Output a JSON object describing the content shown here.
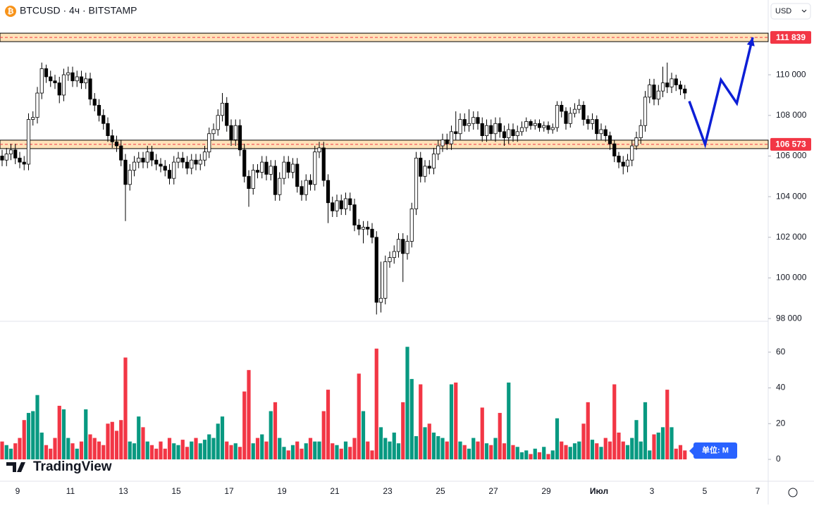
{
  "header": {
    "icon": "₿",
    "title": "BTCUSD · 4ч · BITSTAMP",
    "currency": "USD"
  },
  "watermark": "TradingView",
  "chart_data": [
    {
      "type": "candlestick",
      "up_color": "#ffffff",
      "down_color": "#000000",
      "outline": "#000000",
      "ylim": [
        97900,
        113680
      ],
      "yticks": [
        {
          "value": 98000,
          "label": "98 000"
        },
        {
          "value": 100000,
          "label": "100 000"
        },
        {
          "value": 102000,
          "label": "102 000"
        },
        {
          "value": 104000,
          "label": "104 000"
        },
        {
          "value": 106000,
          "label": "106 000"
        },
        {
          "value": 108000,
          "label": "108 000"
        },
        {
          "value": 110000,
          "label": "110 000"
        }
      ],
      "x_labels": [
        "9",
        "11",
        "13",
        "15",
        "17",
        "19",
        "21",
        "23",
        "25",
        "27",
        "29",
        "Июл",
        "3",
        "5",
        "7"
      ],
      "levels": [
        {
          "value": 111839,
          "label": "111 839"
        },
        {
          "value": 106573,
          "label": "106 573"
        }
      ],
      "projection": {
        "color": "#0d1fd6",
        "values": [
          108700,
          106573,
          109750,
          108600,
          111839
        ]
      },
      "open": [
        106000,
        105800,
        106100,
        106300,
        105900,
        105700,
        105600,
        107800,
        107900,
        109100,
        110300,
        109900,
        109700,
        109600,
        109000,
        110000,
        110100,
        109700,
        109900,
        109600,
        109800,
        108800,
        108500,
        108000,
        107600,
        107000,
        106700,
        106500,
        105800,
        104600,
        105300,
        105700,
        105900,
        105700,
        106200,
        105800,
        105600,
        105500,
        105300,
        104900,
        105700,
        105900,
        105700,
        105400,
        105800,
        105600,
        105800,
        106200,
        107100,
        107300,
        108000,
        108600,
        107500,
        106800,
        107500,
        106300,
        105000,
        104400,
        105300,
        105200,
        105700,
        105100,
        105500,
        104100,
        104900,
        105700,
        105200,
        105600,
        104500,
        104100,
        104800,
        104600,
        106200,
        106400,
        104800,
        103700,
        103300,
        103800,
        103400,
        103900,
        103600,
        102600,
        102400,
        102500,
        102400,
        102000,
        98800,
        99000,
        100800,
        101000,
        101300,
        101900,
        101200,
        101800,
        103400,
        105900,
        105000,
        105500,
        105400,
        106100,
        106500,
        106800,
        106600,
        107200,
        107100,
        107800,
        107500,
        107600,
        107900,
        107600,
        107000,
        107500,
        107100,
        107600,
        107200,
        106900,
        107300,
        107000,
        107200,
        107400,
        107700,
        107500,
        107600,
        107400,
        107500,
        107300,
        107400,
        108500,
        108200,
        107600,
        108100,
        108300,
        108500,
        107800,
        107600,
        107800,
        107100,
        107300,
        107000,
        106600,
        106000,
        105700,
        105500,
        105800,
        106500,
        106900,
        107500,
        108900,
        109500,
        108800,
        109200,
        109600,
        109400,
        109800,
        109500,
        109300
      ],
      "high": [
        106300,
        106400,
        106600,
        106600,
        106200,
        106000,
        108100,
        108200,
        109400,
        110600,
        110500,
        110200,
        110000,
        109900,
        110300,
        110400,
        110400,
        110200,
        110200,
        110100,
        110100,
        109100,
        108800,
        108300,
        107900,
        107300,
        107000,
        106800,
        106100,
        105600,
        106000,
        106200,
        106200,
        106500,
        106500,
        106100,
        105900,
        105800,
        105600,
        106000,
        106200,
        106200,
        106000,
        106100,
        106100,
        106100,
        106500,
        107400,
        107600,
        108300,
        109100,
        108900,
        107800,
        107800,
        107800,
        106600,
        105300,
        105600,
        105600,
        106000,
        106000,
        105800,
        105800,
        105200,
        106000,
        106000,
        105900,
        105900,
        104800,
        105100,
        105100,
        106500,
        106700,
        106700,
        105100,
        104000,
        104100,
        104100,
        104200,
        104200,
        103900,
        102900,
        102800,
        102800,
        102700,
        102300,
        100800,
        101100,
        101300,
        101600,
        102200,
        102200,
        102100,
        103700,
        106200,
        106200,
        105800,
        105800,
        106400,
        106800,
        107100,
        107100,
        107500,
        108200,
        108100,
        108100,
        108300,
        108200,
        108200,
        107900,
        107800,
        107800,
        107900,
        107900,
        107500,
        107600,
        107600,
        107500,
        107700,
        107900,
        107800,
        107800,
        107800,
        107700,
        107700,
        107600,
        108700,
        108700,
        108400,
        108400,
        108600,
        108800,
        108700,
        108000,
        108100,
        108000,
        107600,
        107500,
        107200,
        106800,
        106200,
        106000,
        106100,
        106800,
        107200,
        107800,
        109200,
        109800,
        109800,
        109500,
        110400,
        110600,
        110100,
        110000,
        109700,
        109500
      ],
      "low": [
        105500,
        105500,
        105800,
        105600,
        105400,
        105300,
        105300,
        107500,
        107600,
        108800,
        109600,
        109400,
        109300,
        108600,
        108700,
        109700,
        109400,
        109400,
        109300,
        109300,
        108500,
        108200,
        107700,
        107300,
        106700,
        106400,
        106200,
        105500,
        102800,
        104300,
        105000,
        105400,
        105400,
        105400,
        105500,
        105300,
        105200,
        105000,
        104600,
        104600,
        105400,
        105400,
        105100,
        105100,
        105300,
        105300,
        105500,
        105900,
        106800,
        107000,
        107700,
        107200,
        106500,
        106500,
        106000,
        104700,
        103500,
        104100,
        104900,
        104900,
        104800,
        104800,
        103800,
        103800,
        104600,
        104900,
        104900,
        104200,
        103800,
        103800,
        104300,
        104300,
        105900,
        104500,
        102700,
        103000,
        103000,
        103100,
        103100,
        103300,
        102300,
        102100,
        101700,
        102100,
        101700,
        98200,
        98300,
        98700,
        100500,
        100700,
        101000,
        99800,
        100900,
        101500,
        103100,
        104700,
        104700,
        105100,
        105100,
        105800,
        106200,
        106300,
        106300,
        106800,
        106800,
        107200,
        107200,
        107300,
        107300,
        106700,
        106700,
        106800,
        106700,
        106900,
        106500,
        106600,
        106700,
        106700,
        107000,
        107200,
        107300,
        107300,
        107200,
        107200,
        107100,
        107100,
        107200,
        107900,
        107300,
        107400,
        107900,
        108100,
        107500,
        107300,
        107300,
        106800,
        106800,
        106700,
        106300,
        105700,
        105400,
        105100,
        105200,
        105500,
        106300,
        106600,
        107200,
        108600,
        108500,
        108500,
        108900,
        109100,
        109100,
        109200,
        109000,
        108800
      ],
      "close": [
        105800,
        106100,
        106300,
        105900,
        105700,
        105600,
        107800,
        107900,
        109100,
        110300,
        109900,
        109700,
        109600,
        109000,
        110000,
        110100,
        109700,
        109900,
        109600,
        109800,
        108800,
        108500,
        108000,
        107600,
        107000,
        106700,
        106500,
        105800,
        104600,
        105300,
        105700,
        105900,
        105700,
        106200,
        105800,
        105600,
        105500,
        105300,
        104900,
        105700,
        105900,
        105700,
        105400,
        105800,
        105600,
        105800,
        106200,
        107100,
        107300,
        108000,
        108600,
        107500,
        106800,
        107500,
        106300,
        105000,
        104400,
        105300,
        105200,
        105700,
        105100,
        105500,
        104100,
        104900,
        105700,
        105200,
        105600,
        104500,
        104100,
        104800,
        104600,
        106200,
        106400,
        104800,
        103700,
        103300,
        103800,
        103400,
        103900,
        103600,
        102600,
        102400,
        102500,
        102400,
        102000,
        98800,
        99000,
        100800,
        101000,
        101300,
        101900,
        101200,
        101800,
        103400,
        105900,
        105000,
        105500,
        105400,
        106100,
        106500,
        106800,
        106600,
        107200,
        107100,
        107800,
        107500,
        107600,
        107900,
        107600,
        107000,
        107500,
        107100,
        107600,
        107200,
        106900,
        107300,
        107000,
        107200,
        107400,
        107700,
        107500,
        107600,
        107400,
        107500,
        107300,
        107400,
        108500,
        108200,
        107600,
        108100,
        108300,
        108500,
        107800,
        107600,
        107800,
        107100,
        107300,
        107000,
        106600,
        106000,
        105700,
        105500,
        105800,
        106500,
        106900,
        107500,
        108900,
        109500,
        108800,
        109200,
        109600,
        109400,
        109800,
        109500,
        109300,
        109100
      ]
    },
    {
      "type": "bar",
      "up_color": "#089981",
      "down_color": "#f23645",
      "unit_label": "单位: M",
      "ylim": [
        0,
        76.5
      ],
      "yticks": [
        0,
        20,
        40,
        60
      ],
      "values": [
        10,
        8,
        6,
        9,
        12,
        22,
        26,
        27,
        36,
        15,
        8,
        6,
        12,
        30,
        28,
        12,
        9,
        6,
        10,
        28,
        14,
        12,
        10,
        8,
        20,
        21,
        16,
        22,
        57,
        10,
        9,
        24,
        18,
        10,
        8,
        6,
        10,
        6,
        12,
        9,
        8,
        11,
        7,
        10,
        12,
        9,
        11,
        14,
        12,
        20,
        24,
        10,
        8,
        9,
        7,
        38,
        50,
        9,
        12,
        14,
        10,
        27,
        32,
        12,
        7,
        5,
        8,
        10,
        6,
        9,
        12,
        10,
        10,
        27,
        39,
        9,
        8,
        6,
        10,
        7,
        12,
        48,
        27,
        10,
        5,
        62,
        18,
        12,
        10,
        15,
        9,
        32,
        63,
        45,
        13,
        42,
        18,
        20,
        15,
        13,
        12,
        10,
        42,
        43,
        10,
        8,
        6,
        12,
        10,
        29,
        9,
        8,
        12,
        26,
        9,
        43,
        8,
        7,
        4,
        5,
        3,
        6,
        4,
        7,
        3,
        5,
        23,
        10,
        8,
        7,
        9,
        10,
        20,
        32,
        11,
        9,
        7,
        12,
        10,
        42,
        15,
        10,
        8,
        12,
        22,
        10,
        32,
        5,
        14,
        15,
        18,
        39,
        18,
        6,
        8,
        5
      ]
    }
  ]
}
